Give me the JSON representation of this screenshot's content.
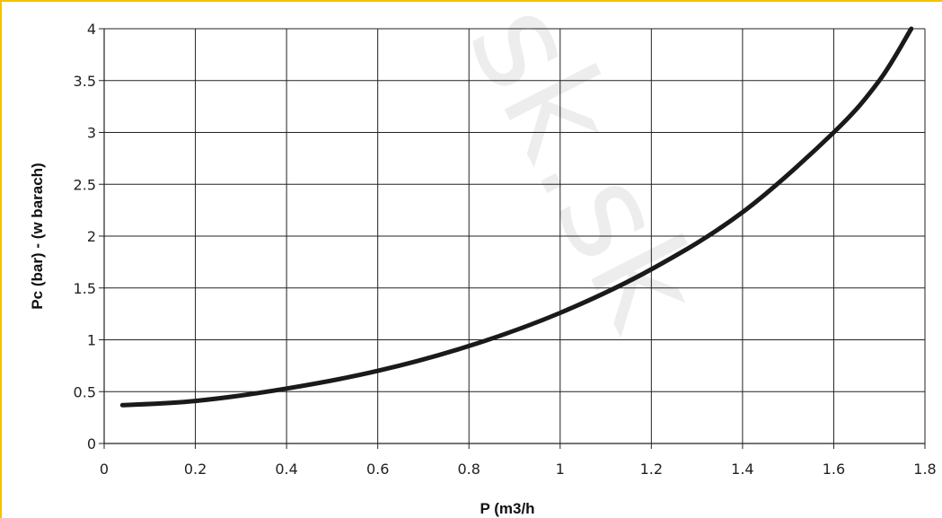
{
  "chart_data": {
    "type": "line",
    "xlabel": "P (m3/h",
    "ylabel": "Pc (bar) - (w barach)",
    "xlim": [
      0,
      1.8
    ],
    "ylim": [
      0,
      4
    ],
    "x_ticks": [
      "0",
      "0.2",
      "0.4",
      "0.6",
      "0.8",
      "1",
      "1.2",
      "1.4",
      "1.6",
      "1.8"
    ],
    "y_ticks": [
      "0",
      "0.5",
      "1",
      "1.5",
      "2",
      "2.5",
      "3",
      "3.5",
      "4"
    ],
    "grid": "vertical and horizontal",
    "series": [
      {
        "x": [
          0.04,
          0.2,
          0.4,
          0.6,
          0.8,
          1.0,
          1.2,
          1.4,
          1.6,
          1.7,
          1.77
        ],
        "y": [
          0.37,
          0.41,
          0.53,
          0.7,
          0.94,
          1.26,
          1.68,
          2.23,
          3.0,
          3.5,
          4.0
        ]
      }
    ],
    "line_color": "#1a1a1a",
    "grid_color": "#222222",
    "frame_color": "#f2c200",
    "watermark": "sk.sk"
  }
}
